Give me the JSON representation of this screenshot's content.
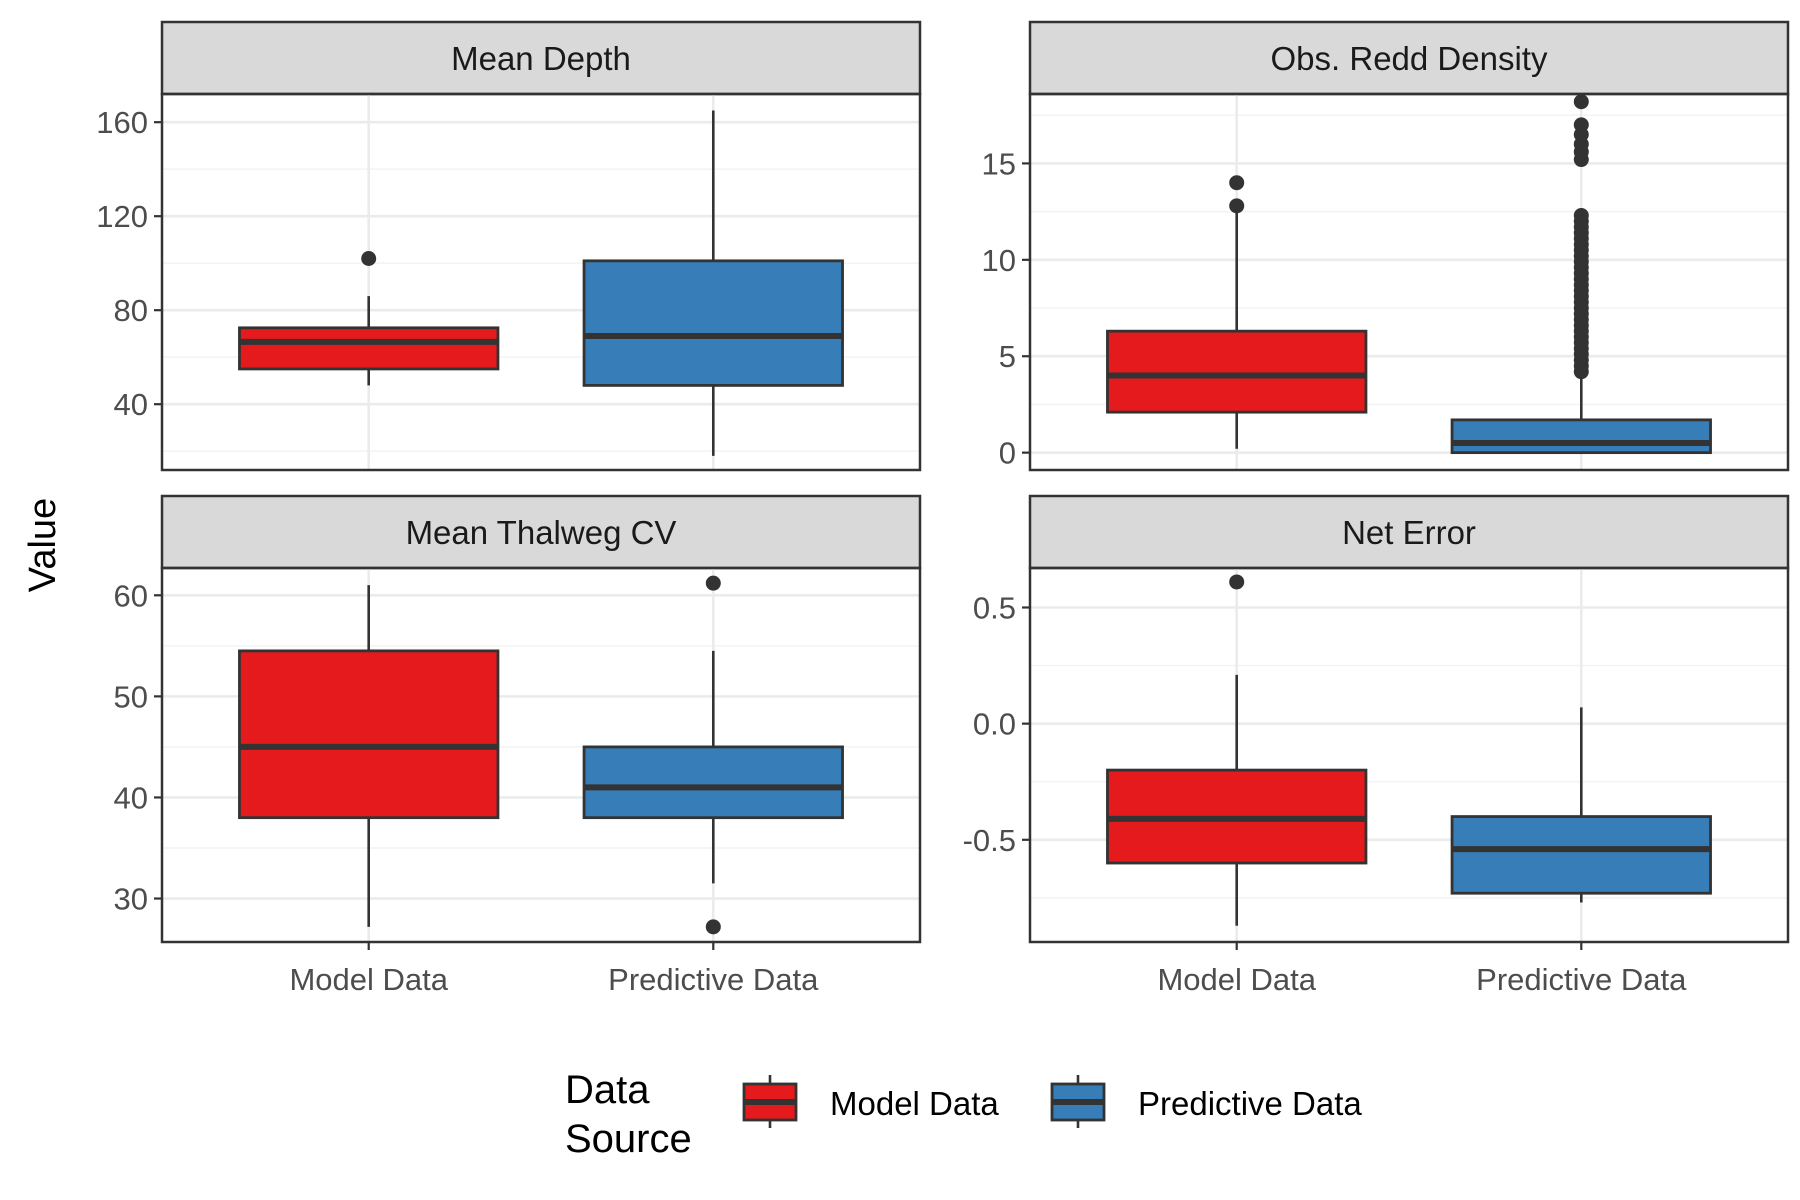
{
  "colors": {
    "model": "#e41a1c",
    "predictive": "#377eb8"
  },
  "axis_title_y": "Value",
  "legend": {
    "title_lines": [
      "Data",
      "Source"
    ],
    "items": [
      {
        "label": "Model Data",
        "color_key": "model"
      },
      {
        "label": "Predictive Data",
        "color_key": "predictive"
      }
    ]
  },
  "x_categories": [
    "Model Data",
    "Predictive Data"
  ],
  "chart_data": [
    {
      "type": "boxplot",
      "title": "Mean Depth",
      "ylim": [
        12,
        172
      ],
      "y_major_ticks": [
        40,
        80,
        120,
        160
      ],
      "y_minor_ticks": [
        20,
        60,
        100,
        140
      ],
      "tick_labels": [
        "40",
        "80",
        "120",
        "160"
      ],
      "boxes": [
        {
          "category": "Model Data",
          "lower_whisker": 48,
          "q1": 55,
          "median": 66.5,
          "q3": 72.5,
          "upper_whisker": 86,
          "outliers": [
            102
          ]
        },
        {
          "category": "Predictive Data",
          "lower_whisker": 18,
          "q1": 48,
          "median": 69,
          "q3": 101,
          "upper_whisker": 165,
          "outliers": []
        }
      ]
    },
    {
      "type": "boxplot",
      "title": "Obs. Redd Density",
      "ylim": [
        -0.9,
        18.6
      ],
      "y_major_ticks": [
        0,
        5,
        10,
        15
      ],
      "y_minor_ticks": [
        2.5,
        7.5,
        12.5,
        17.5
      ],
      "tick_labels": [
        "0",
        "5",
        "10",
        "15"
      ],
      "boxes": [
        {
          "category": "Model Data",
          "lower_whisker": 0.2,
          "q1": 2.1,
          "median": 4.0,
          "q3": 6.3,
          "upper_whisker": 12.6,
          "outliers": [
            12.8,
            14.0
          ]
        },
        {
          "category": "Predictive Data",
          "lower_whisker": 0.0,
          "q1": 0.0,
          "median": 0.5,
          "q3": 1.7,
          "upper_whisker": 4.1,
          "outliers": [
            4.2,
            4.5,
            4.8,
            5.1,
            5.4,
            5.7,
            6.0,
            6.3,
            6.6,
            6.9,
            7.2,
            7.5,
            7.8,
            8.1,
            8.4,
            8.7,
            9.0,
            9.3,
            9.6,
            9.9,
            10.2,
            10.5,
            10.8,
            11.1,
            11.4,
            11.7,
            12.0,
            12.3,
            15.2,
            15.6,
            16.0,
            16.5,
            17.0,
            18.2
          ]
        }
      ]
    },
    {
      "type": "boxplot",
      "title": "Mean Thalweg CV",
      "ylim": [
        25.7,
        62.7
      ],
      "y_major_ticks": [
        30,
        40,
        50,
        60
      ],
      "y_minor_ticks": [
        35,
        45,
        55
      ],
      "tick_labels": [
        "30",
        "40",
        "50",
        "60"
      ],
      "boxes": [
        {
          "category": "Model Data",
          "lower_whisker": 27.2,
          "q1": 38,
          "median": 45,
          "q3": 54.5,
          "upper_whisker": 61,
          "outliers": []
        },
        {
          "category": "Predictive Data",
          "lower_whisker": 31.5,
          "q1": 38,
          "median": 41,
          "q3": 45,
          "upper_whisker": 54.5,
          "outliers": [
            27.2,
            61.2
          ]
        }
      ]
    },
    {
      "type": "boxplot",
      "title": "Net Error",
      "ylim": [
        -0.94,
        0.67
      ],
      "y_major_ticks": [
        -0.5,
        0.0,
        0.5
      ],
      "y_minor_ticks": [
        -0.75,
        -0.25,
        0.25
      ],
      "tick_labels": [
        "-0.5",
        "0.0",
        "0.5"
      ],
      "boxes": [
        {
          "category": "Model Data",
          "lower_whisker": -0.87,
          "q1": -0.6,
          "median": -0.41,
          "q3": -0.2,
          "upper_whisker": 0.21,
          "outliers": [
            0.61
          ]
        },
        {
          "category": "Predictive Data",
          "lower_whisker": -0.77,
          "q1": -0.73,
          "median": -0.54,
          "q3": -0.4,
          "upper_whisker": 0.07,
          "outliers": []
        }
      ]
    }
  ]
}
